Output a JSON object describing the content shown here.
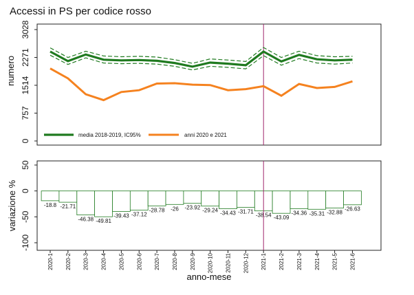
{
  "title": "Accessi in PS per codice rosso",
  "chart_data": [
    {
      "type": "line",
      "ylabel": "numero",
      "ylim": [
        0,
        3028
      ],
      "yticks": [
        0,
        757,
        1514,
        2271,
        3028
      ],
      "categories": [
        "2020-1",
        "2020-2",
        "2020-3",
        "2020-4",
        "2020-5",
        "2020-6",
        "2020-7",
        "2020-8",
        "2020-9",
        "2020-10",
        "2020-11",
        "2020-12",
        "2021-1",
        "2021-2",
        "2021-3",
        "2021-4",
        "2021-5",
        "2021-6"
      ],
      "vline_at": "2021-1",
      "legend": [
        "media 2018-2019, IC95%",
        "anni 2020 e 2021"
      ],
      "series": [
        {
          "name": "media 2018-2019, IC95%",
          "color": "#1f7a1f",
          "values": [
            2430,
            2170,
            2350,
            2210,
            2190,
            2200,
            2180,
            2120,
            2020,
            2130,
            2100,
            2060,
            2430,
            2160,
            2340,
            2220,
            2190,
            2210
          ]
        },
        {
          "name": "IC95% upper",
          "color": "#1f7a1f",
          "values": [
            2530,
            2270,
            2440,
            2310,
            2290,
            2300,
            2280,
            2210,
            2110,
            2230,
            2200,
            2160,
            2540,
            2270,
            2440,
            2320,
            2290,
            2300
          ]
        },
        {
          "name": "IC95% lower",
          "color": "#1f7a1f",
          "values": [
            2330,
            2080,
            2260,
            2120,
            2100,
            2110,
            2090,
            2030,
            1930,
            2030,
            2000,
            1960,
            2320,
            2060,
            2240,
            2120,
            2090,
            2120
          ]
        },
        {
          "name": "anni 2020 e 2021",
          "color": "#f5821f",
          "values": [
            1970,
            1700,
            1270,
            1110,
            1330,
            1380,
            1560,
            1570,
            1530,
            1520,
            1380,
            1410,
            1490,
            1230,
            1550,
            1440,
            1470,
            1620
          ]
        }
      ]
    },
    {
      "type": "bar",
      "ylabel": "variazione %",
      "ylim": [
        -100,
        50
      ],
      "yticks": [
        50,
        0,
        -50,
        -100
      ],
      "xlabel": "anno-mese",
      "vline_at": "2021-1",
      "categories": [
        "2020-1",
        "2020-2",
        "2020-3",
        "2020-4",
        "2020-5",
        "2020-6",
        "2020-7",
        "2020-8",
        "2020-9",
        "2020-10",
        "2020-11",
        "2020-12",
        "2021-1",
        "2021-2",
        "2021-3",
        "2021-4",
        "2021-5",
        "2021-6"
      ],
      "values": [
        -18.8,
        -21.71,
        -46.38,
        -49.81,
        -39.43,
        -37.12,
        -28.78,
        -26,
        -23.92,
        -29.24,
        -34.43,
        -31.71,
        -38.54,
        -43.09,
        -34.36,
        -35.31,
        -32.88,
        -26.63
      ],
      "labels": [
        "-18.8",
        "-21.71",
        "-46.38",
        "-49.81",
        "-39.43",
        "-37.12",
        "-28.78",
        "-26",
        "-23.92",
        "-29.24",
        "-34.43",
        "-31.71",
        "-38.54",
        "-43.09",
        "-34.36",
        "-35.31",
        "-32.88",
        "-26.63"
      ],
      "bar_color": "#1f7a1f"
    }
  ]
}
